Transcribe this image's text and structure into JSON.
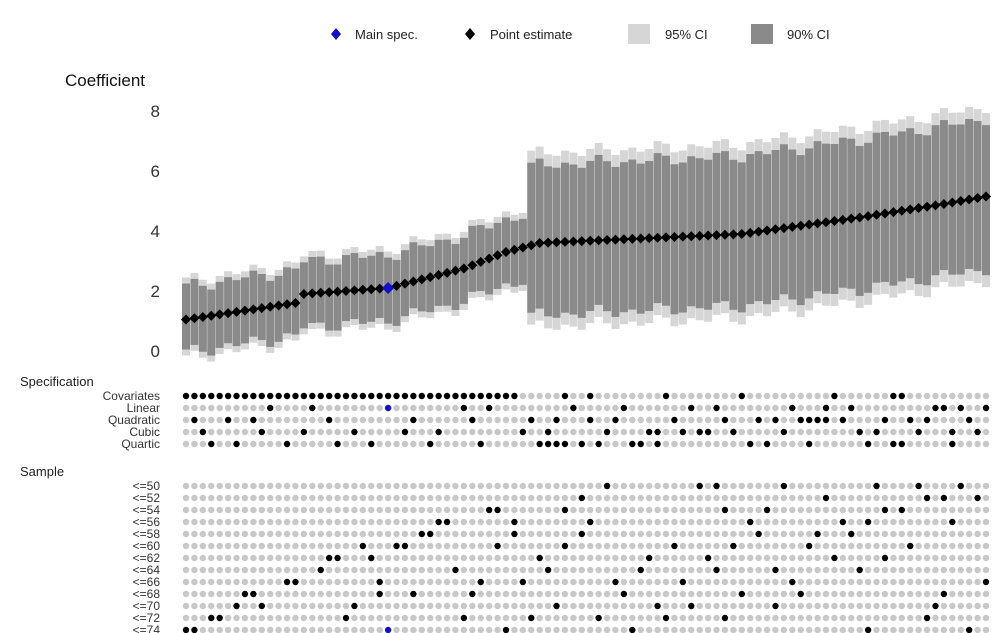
{
  "chart_data": {
    "type": "specification-curve",
    "ylabel": "Coefficient",
    "ylim": [
      -0.3,
      8.3
    ],
    "yticks": [
      "0",
      "2",
      "4",
      "6",
      "8"
    ],
    "legend": {
      "placement": "top",
      "items": [
        {
          "name": "Main spec.",
          "marker": "diamond",
          "color": "#1111cc"
        },
        {
          "name": "Point estimate",
          "marker": "diamond",
          "color": "#000000"
        },
        {
          "name": "95% CI",
          "marker": "square",
          "color": "#d6d6d6"
        },
        {
          "name": "90% CI",
          "marker": "square",
          "color": "#8a8a8a"
        }
      ]
    },
    "n_specs": 96,
    "main_spec_index": 24,
    "estimate_curve": [
      [
        0,
        1.05
      ],
      [
        13,
        1.6
      ],
      [
        14,
        1.9
      ],
      [
        24,
        2.1
      ],
      [
        33,
        2.75
      ],
      [
        38,
        3.3
      ],
      [
        42,
        3.6
      ],
      [
        66,
        3.9
      ],
      [
        80,
        4.45
      ],
      [
        90,
        4.9
      ],
      [
        95,
        5.15
      ]
    ],
    "ci_pattern": [
      {
        "from": 0,
        "to": 40,
        "ci90_lower_offset": 1.1,
        "ci90_upper_offset": 1.1,
        "ci95_extra": 0.2
      },
      {
        "from": 41,
        "to": 95,
        "ci90_lower_offset": 2.4,
        "ci90_upper_offset": 2.6,
        "ci95_extra": 0.4
      }
    ],
    "colors": {
      "estimate": "#000000",
      "main_spec": "#1111cc",
      "ci95": "#d6d6d6",
      "ci90": "#8a8a8a",
      "dot_on": "#000000",
      "dot_off": "#c8c8c8"
    },
    "sections": [
      {
        "label": "Specification",
        "rows": [
          {
            "label": "Covariates",
            "on": [
              0,
              1,
              2,
              3,
              4,
              5,
              6,
              7,
              8,
              9,
              10,
              11,
              12,
              13,
              14,
              15,
              16,
              17,
              18,
              19,
              20,
              21,
              22,
              23,
              24,
              25,
              26,
              27,
              28,
              29,
              30,
              31,
              32,
              33,
              34,
              35,
              36,
              37,
              38,
              39,
              45,
              48,
              57,
              66,
              77,
              84,
              85
            ]
          },
          {
            "label": "Linear",
            "on": [
              10,
              15,
              24,
              33,
              36,
              46,
              52,
              60,
              63,
              72,
              76,
              79,
              89,
              90,
              92,
              95
            ]
          },
          {
            "label": "Quadratic",
            "on": [
              1,
              5,
              8,
              17,
              27,
              34,
              41,
              44,
              48,
              51,
              58,
              64,
              68,
              70,
              73,
              74,
              75,
              76,
              78,
              83,
              86,
              88,
              93
            ]
          },
          {
            "label": "Cubic",
            "on": [
              2,
              9,
              14,
              20,
              26,
              30,
              40,
              43,
              50,
              55,
              56,
              59,
              61,
              62,
              65,
              71,
              80,
              82,
              87,
              91,
              94
            ]
          },
          {
            "label": "Quartic",
            "on": [
              3,
              6,
              12,
              18,
              22,
              29,
              35,
              42,
              43,
              44,
              45,
              47,
              49,
              53,
              54,
              56,
              67,
              69,
              74,
              81,
              84,
              85,
              91
            ]
          }
        ]
      },
      {
        "label": "Sample",
        "rows": [
          {
            "label": "<=50",
            "on": [
              50,
              61,
              63,
              71,
              82,
              87,
              92
            ]
          },
          {
            "label": "<=52",
            "on": [
              47,
              76,
              88,
              90,
              94
            ]
          },
          {
            "label": "<=54",
            "on": [
              36,
              37,
              45,
              64,
              69,
              83,
              85
            ]
          },
          {
            "label": "<=56",
            "on": [
              30,
              31,
              39,
              48,
              67,
              78,
              81,
              91
            ]
          },
          {
            "label": "<=58",
            "on": [
              28,
              29,
              39,
              47,
              68,
              75,
              79
            ]
          },
          {
            "label": "<=60",
            "on": [
              21,
              25,
              26,
              37,
              45,
              58,
              65,
              74,
              86
            ]
          },
          {
            "label": "<=62",
            "on": [
              17,
              18,
              22,
              42,
              55,
              62,
              77,
              83
            ]
          },
          {
            "label": "<=64",
            "on": [
              16,
              32,
              43,
              54,
              63,
              70,
              80
            ]
          },
          {
            "label": "<=66",
            "on": [
              12,
              13,
              23,
              35,
              40,
              51,
              59,
              72,
              95
            ]
          },
          {
            "label": "<=68",
            "on": [
              7,
              8,
              23,
              27,
              34,
              52,
              66,
              73,
              90
            ]
          },
          {
            "label": "<=70",
            "on": [
              6,
              9,
              20,
              44,
              56,
              60,
              70,
              89
            ]
          },
          {
            "label": "<=72",
            "on": [
              3,
              4,
              19,
              33,
              41,
              49,
              57,
              64,
              88
            ]
          },
          {
            "label": "<=74",
            "on": [
              0,
              1,
              24,
              38,
              53,
              81,
              93
            ]
          }
        ]
      }
    ],
    "highlight_dots": [
      {
        "row": "Linear",
        "index": 24
      },
      {
        "row": "<=74",
        "index": 24
      }
    ]
  }
}
